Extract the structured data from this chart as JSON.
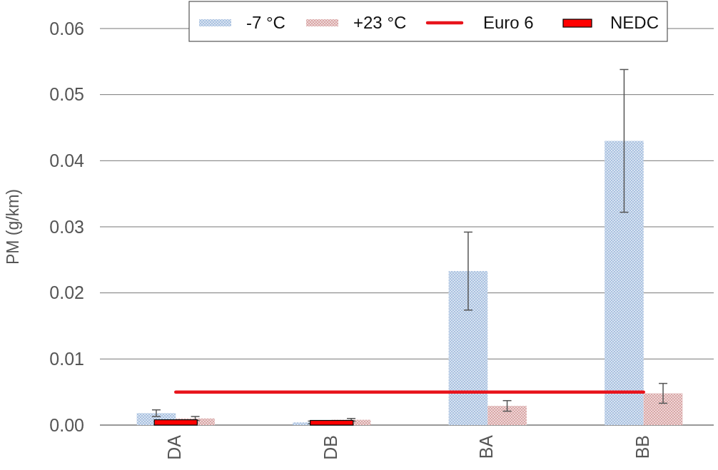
{
  "chart_data": {
    "type": "bar",
    "ylabel": "PM (g/km)",
    "categories": [
      "DA",
      "DB",
      "BA",
      "BB"
    ],
    "series": [
      {
        "name": "-7 °C",
        "color": "#a9c1e0",
        "values": [
          0.0018,
          0.0004,
          0.0233,
          0.043
        ],
        "errors": [
          0.0005,
          0.0002,
          0.0059,
          0.0108
        ]
      },
      {
        "name": "+23 °C",
        "color": "#d9a6a6",
        "values": [
          0.001,
          0.0008,
          0.0029,
          0.0048
        ],
        "errors": [
          0.0003,
          0.0002,
          0.0008,
          0.0015
        ]
      },
      {
        "name": "Euro 6",
        "type": "line",
        "color": "#e8141c",
        "values": [
          0.005,
          0.005,
          0.005,
          0.005
        ]
      },
      {
        "name": "NEDC",
        "color": "#ff0000",
        "values": [
          0.0008,
          0.0007,
          null,
          null
        ]
      }
    ],
    "ylim": [
      0,
      0.06
    ],
    "yticks": [
      {
        "value": 0,
        "label": "0.00"
      },
      0.01,
      0.02,
      0.03,
      0.04,
      0.05,
      0.06
    ],
    "grid": "y",
    "legend": "top"
  }
}
